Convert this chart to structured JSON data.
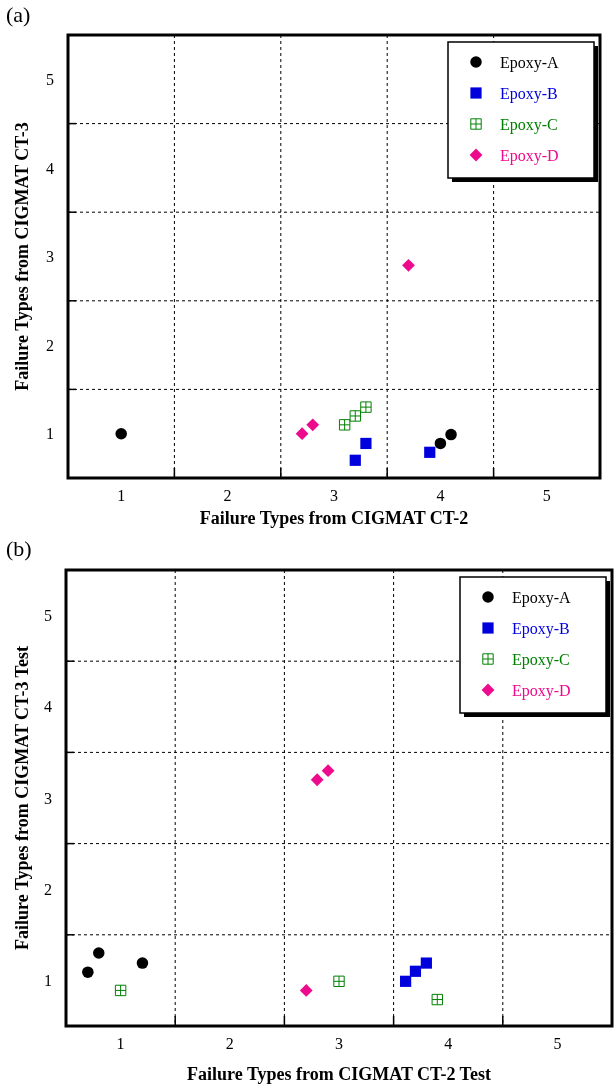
{
  "chart_data": [
    {
      "type": "scatter",
      "title": "(a)",
      "xlabel": "Failure Types from CIGMAT CT-2",
      "ylabel": "Failure Types from CIGMAT CT-3",
      "xlim": [
        0.5,
        5.5
      ],
      "ylim": [
        0.5,
        5.5
      ],
      "xticks": [
        1,
        {
          "value": 1.5,
          "label": null
        },
        2,
        {
          "value": 2.5,
          "label": null
        },
        3,
        {
          "value": 3.5,
          "label": null
        },
        4,
        {
          "value": 4.5,
          "label": null
        },
        5
      ],
      "yticks": [
        1,
        {
          "value": 1.5,
          "label": null
        },
        2,
        {
          "value": 2.5,
          "label": null
        },
        3,
        {
          "value": 3.5,
          "label": null
        },
        4,
        {
          "value": 4.5,
          "label": null
        },
        5
      ],
      "grid": true,
      "legend": "top right",
      "series": [
        {
          "name": "Epoxy-A",
          "color": "#000000",
          "marker": "circle",
          "x": [
            1.0,
            4.0,
            4.1
          ],
          "values": [
            1.0,
            0.89,
            0.99
          ]
        },
        {
          "name": "Epoxy-B",
          "color": "#0000dd",
          "marker": "square",
          "x": [
            3.2,
            3.3,
            3.9
          ],
          "values": [
            0.7,
            0.89,
            0.79
          ]
        },
        {
          "name": "Epoxy-C",
          "color": "#008000",
          "marker": "cross",
          "x": [
            3.1,
            3.2,
            3.3
          ],
          "values": [
            1.1,
            1.2,
            1.3
          ]
        },
        {
          "name": "Epoxy-D",
          "color": "#ee0a8c",
          "marker": "diamond",
          "x": [
            2.7,
            2.8,
            3.7
          ],
          "values": [
            1.0,
            1.1,
            2.9
          ]
        }
      ]
    },
    {
      "type": "scatter",
      "title": "(b)",
      "xlabel": "Failure Types from CIGMAT CT-2 Test",
      "ylabel": "Failure Types from CIGMAT CT-3 Test",
      "xlim": [
        0.5,
        5.5
      ],
      "ylim": [
        0.5,
        5.5
      ],
      "xticks": [
        1,
        {
          "value": 1.5,
          "label": null
        },
        2,
        {
          "value": 2.5,
          "label": null
        },
        3,
        {
          "value": 3.5,
          "label": null
        },
        4,
        {
          "value": 4.5,
          "label": null
        },
        5
      ],
      "yticks": [
        1,
        {
          "value": 1.5,
          "label": null
        },
        2,
        {
          "value": 2.5,
          "label": null
        },
        3,
        {
          "value": 3.5,
          "label": null
        },
        4,
        {
          "value": 4.5,
          "label": null
        },
        5
      ],
      "grid": true,
      "legend": "top right",
      "series": [
        {
          "name": "Epoxy-A",
          "color": "#000000",
          "marker": "circle",
          "x": [
            0.7,
            0.8,
            1.2
          ],
          "values": [
            1.09,
            1.3,
            1.19
          ]
        },
        {
          "name": "Epoxy-B",
          "color": "#0000dd",
          "marker": "square",
          "x": [
            3.61,
            3.7,
            3.8
          ],
          "values": [
            0.99,
            1.1,
            1.19
          ]
        },
        {
          "name": "Epoxy-C",
          "color": "#008000",
          "marker": "cross",
          "x": [
            1.0,
            3.0,
            3.9
          ],
          "values": [
            0.89,
            0.99,
            0.79
          ]
        },
        {
          "name": "Epoxy-D",
          "color": "#ee0a8c",
          "marker": "diamond",
          "x": [
            2.7,
            2.8,
            2.9
          ],
          "values": [
            0.89,
            3.2,
            3.3
          ]
        }
      ]
    }
  ]
}
